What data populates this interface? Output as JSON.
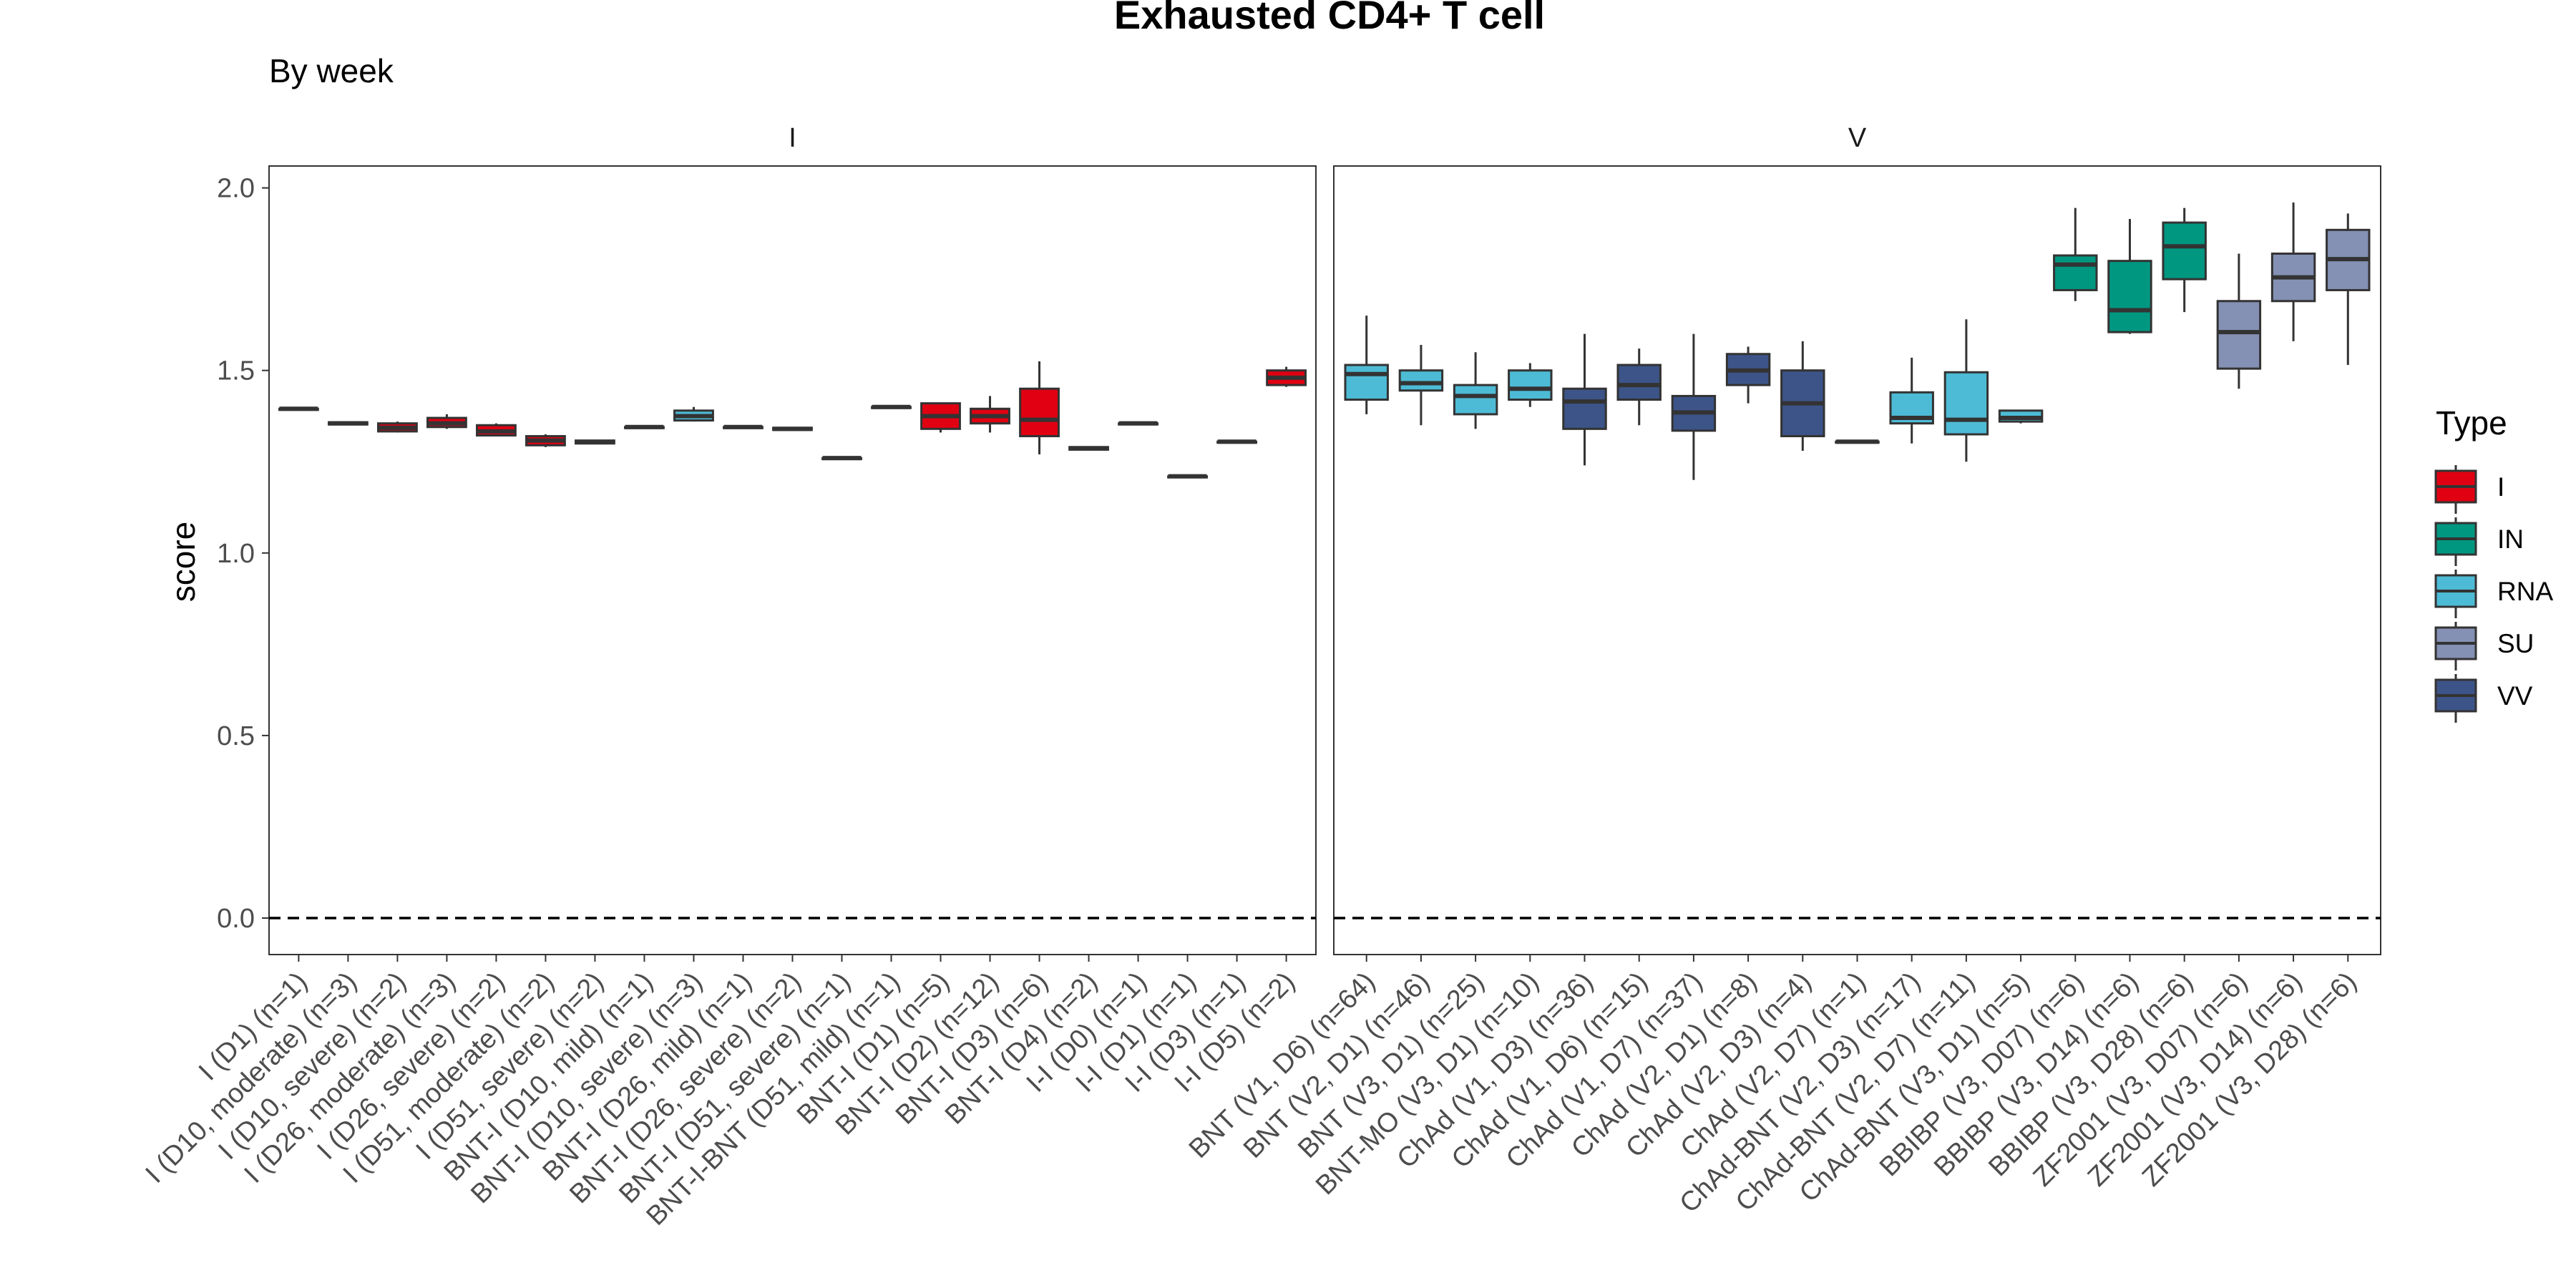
{
  "chart_data": {
    "type": "box",
    "title": "Exhausted CD4+ T cell",
    "subtitle": "By week",
    "ylabel": "score",
    "xlabel": "",
    "ylim": [
      -0.1,
      2.06
    ],
    "yticks": [
      "0.0",
      "0.5",
      "1.0",
      "1.5",
      "2.0"
    ],
    "reference_line": {
      "y": 0,
      "style": "dashed"
    },
    "grid": false,
    "legend": {
      "title": "Type",
      "position": "right",
      "entries": [
        {
          "name": "I",
          "color": "#E00012"
        },
        {
          "name": "IN",
          "color": "#009781"
        },
        {
          "name": "RNA",
          "color": "#4DBBD5"
        },
        {
          "name": "SU",
          "color": "#8491B4"
        },
        {
          "name": "VV",
          "color": "#3C5488"
        }
      ]
    },
    "panels": [
      {
        "name": "I",
        "categories": [
          {
            "label": "I (D1) (n=1)",
            "type": "I",
            "min": 1.395,
            "q1": 1.395,
            "median": 1.395,
            "q3": 1.395,
            "max": 1.395
          },
          {
            "label": "I (D10, moderate) (n=3)",
            "type": "I",
            "min": 1.35,
            "q1": 1.352,
            "median": 1.355,
            "q3": 1.358,
            "max": 1.36
          },
          {
            "label": "I (D10, severe) (n=2)",
            "type": "I",
            "min": 1.33,
            "q1": 1.333,
            "median": 1.343,
            "q3": 1.355,
            "max": 1.36
          },
          {
            "label": "I (D26, moderate) (n=3)",
            "type": "I",
            "min": 1.34,
            "q1": 1.345,
            "median": 1.355,
            "q3": 1.37,
            "max": 1.38
          },
          {
            "label": "I (D26, severe) (n=2)",
            "type": "I",
            "min": 1.32,
            "q1": 1.322,
            "median": 1.333,
            "q3": 1.35,
            "max": 1.355
          },
          {
            "label": "I (D51, moderate) (n=2)",
            "type": "I",
            "min": 1.29,
            "q1": 1.295,
            "median": 1.308,
            "q3": 1.32,
            "max": 1.325
          },
          {
            "label": "I (D51, severe) (n=2)",
            "type": "I",
            "min": 1.3,
            "q1": 1.3,
            "median": 1.304,
            "q3": 1.308,
            "max": 1.31
          },
          {
            "label": "BNT-I (D10, mild) (n=1)",
            "type": "I",
            "min": 1.345,
            "q1": 1.345,
            "median": 1.345,
            "q3": 1.345,
            "max": 1.345
          },
          {
            "label": "BNT-I (D10, severe) (n=3)",
            "type": "RNA",
            "min": 1.36,
            "q1": 1.363,
            "median": 1.375,
            "q3": 1.39,
            "max": 1.4
          },
          {
            "label": "BNT-I (D26, mild) (n=1)",
            "type": "I",
            "min": 1.345,
            "q1": 1.345,
            "median": 1.345,
            "q3": 1.345,
            "max": 1.345
          },
          {
            "label": "BNT-I (D26, severe) (n=2)",
            "type": "I",
            "min": 1.335,
            "q1": 1.337,
            "median": 1.34,
            "q3": 1.343,
            "max": 1.345
          },
          {
            "label": "BNT-I (D51, severe) (n=1)",
            "type": "I",
            "min": 1.26,
            "q1": 1.26,
            "median": 1.26,
            "q3": 1.26,
            "max": 1.26
          },
          {
            "label": "BNT-I-BNT (D51, mild) (n=1)",
            "type": "I",
            "min": 1.4,
            "q1": 1.4,
            "median": 1.4,
            "q3": 1.4,
            "max": 1.4
          },
          {
            "label": "BNT-I (D1) (n=5)",
            "type": "I",
            "min": 1.33,
            "q1": 1.34,
            "median": 1.375,
            "q3": 1.41,
            "max": 1.41
          },
          {
            "label": "BNT-I (D2) (n=12)",
            "type": "I",
            "min": 1.33,
            "q1": 1.355,
            "median": 1.375,
            "q3": 1.395,
            "max": 1.43
          },
          {
            "label": "BNT-I (D3) (n=6)",
            "type": "I",
            "min": 1.27,
            "q1": 1.32,
            "median": 1.365,
            "q3": 1.45,
            "max": 1.525
          },
          {
            "label": "BNT-I (D4) (n=2)",
            "type": "I",
            "min": 1.283,
            "q1": 1.283,
            "median": 1.287,
            "q3": 1.29,
            "max": 1.29
          },
          {
            "label": "I-I (D0) (n=1)",
            "type": "I",
            "min": 1.355,
            "q1": 1.355,
            "median": 1.355,
            "q3": 1.355,
            "max": 1.355
          },
          {
            "label": "I-I (D1) (n=1)",
            "type": "I",
            "min": 1.21,
            "q1": 1.21,
            "median": 1.21,
            "q3": 1.21,
            "max": 1.21
          },
          {
            "label": "I-I (D3) (n=1)",
            "type": "I",
            "min": 1.305,
            "q1": 1.305,
            "median": 1.305,
            "q3": 1.305,
            "max": 1.305
          },
          {
            "label": "I-I (D5) (n=2)",
            "type": "I",
            "min": 1.455,
            "q1": 1.46,
            "median": 1.48,
            "q3": 1.5,
            "max": 1.51
          }
        ]
      },
      {
        "name": "V",
        "categories": [
          {
            "label": "BNT (V1, D6) (n=64)",
            "type": "RNA",
            "min": 1.38,
            "q1": 1.42,
            "median": 1.49,
            "q3": 1.515,
            "max": 1.65
          },
          {
            "label": "BNT (V2, D1) (n=46)",
            "type": "RNA",
            "min": 1.35,
            "q1": 1.445,
            "median": 1.465,
            "q3": 1.5,
            "max": 1.57
          },
          {
            "label": "BNT (V3, D1) (n=25)",
            "type": "RNA",
            "min": 1.34,
            "q1": 1.38,
            "median": 1.43,
            "q3": 1.46,
            "max": 1.55
          },
          {
            "label": "BNT-MO (V3, D1) (n=10)",
            "type": "RNA",
            "min": 1.4,
            "q1": 1.42,
            "median": 1.45,
            "q3": 1.5,
            "max": 1.52
          },
          {
            "label": "ChAd (V1, D3) (n=36)",
            "type": "VV",
            "min": 1.24,
            "q1": 1.34,
            "median": 1.415,
            "q3": 1.45,
            "max": 1.6
          },
          {
            "label": "ChAd (V1, D6) (n=15)",
            "type": "VV",
            "min": 1.35,
            "q1": 1.42,
            "median": 1.46,
            "q3": 1.515,
            "max": 1.56
          },
          {
            "label": "ChAd (V1, D7) (n=37)",
            "type": "VV",
            "min": 1.2,
            "q1": 1.335,
            "median": 1.385,
            "q3": 1.43,
            "max": 1.6
          },
          {
            "label": "ChAd (V2, D1) (n=8)",
            "type": "VV",
            "min": 1.41,
            "q1": 1.46,
            "median": 1.5,
            "q3": 1.545,
            "max": 1.565
          },
          {
            "label": "ChAd (V2, D3) (n=4)",
            "type": "VV",
            "min": 1.28,
            "q1": 1.32,
            "median": 1.41,
            "q3": 1.5,
            "max": 1.58
          },
          {
            "label": "ChAd (V2, D7) (n=1)",
            "type": "VV",
            "min": 1.305,
            "q1": 1.305,
            "median": 1.305,
            "q3": 1.305,
            "max": 1.305
          },
          {
            "label": "ChAd-BNT (V2, D3) (n=17)",
            "type": "RNA",
            "min": 1.3,
            "q1": 1.355,
            "median": 1.37,
            "q3": 1.44,
            "max": 1.535
          },
          {
            "label": "ChAd-BNT (V2, D7) (n=11)",
            "type": "RNA",
            "min": 1.25,
            "q1": 1.325,
            "median": 1.365,
            "q3": 1.495,
            "max": 1.64
          },
          {
            "label": "ChAd-BNT (V3, D1) (n=5)",
            "type": "RNA",
            "min": 1.355,
            "q1": 1.36,
            "median": 1.37,
            "q3": 1.39,
            "max": 1.39
          },
          {
            "label": "BBIBP (V3, D07) (n=6)",
            "type": "IN",
            "min": 1.69,
            "q1": 1.72,
            "median": 1.79,
            "q3": 1.815,
            "max": 1.945
          },
          {
            "label": "BBIBP (V3, D14) (n=6)",
            "type": "IN",
            "min": 1.6,
            "q1": 1.605,
            "median": 1.665,
            "q3": 1.8,
            "max": 1.915
          },
          {
            "label": "BBIBP (V3, D28) (n=6)",
            "type": "IN",
            "min": 1.66,
            "q1": 1.75,
            "median": 1.84,
            "q3": 1.905,
            "max": 1.945
          },
          {
            "label": "ZF2001 (V3, D07) (n=6)",
            "type": "SU",
            "min": 1.45,
            "q1": 1.505,
            "median": 1.605,
            "q3": 1.69,
            "max": 1.82
          },
          {
            "label": "ZF2001 (V3, D14) (n=6)",
            "type": "SU",
            "min": 1.58,
            "q1": 1.69,
            "median": 1.755,
            "q3": 1.82,
            "max": 1.96
          },
          {
            "label": "ZF2001 (V3, D28) (n=6)",
            "type": "SU",
            "min": 1.515,
            "q1": 1.72,
            "median": 1.805,
            "q3": 1.885,
            "max": 1.93
          }
        ]
      }
    ]
  }
}
